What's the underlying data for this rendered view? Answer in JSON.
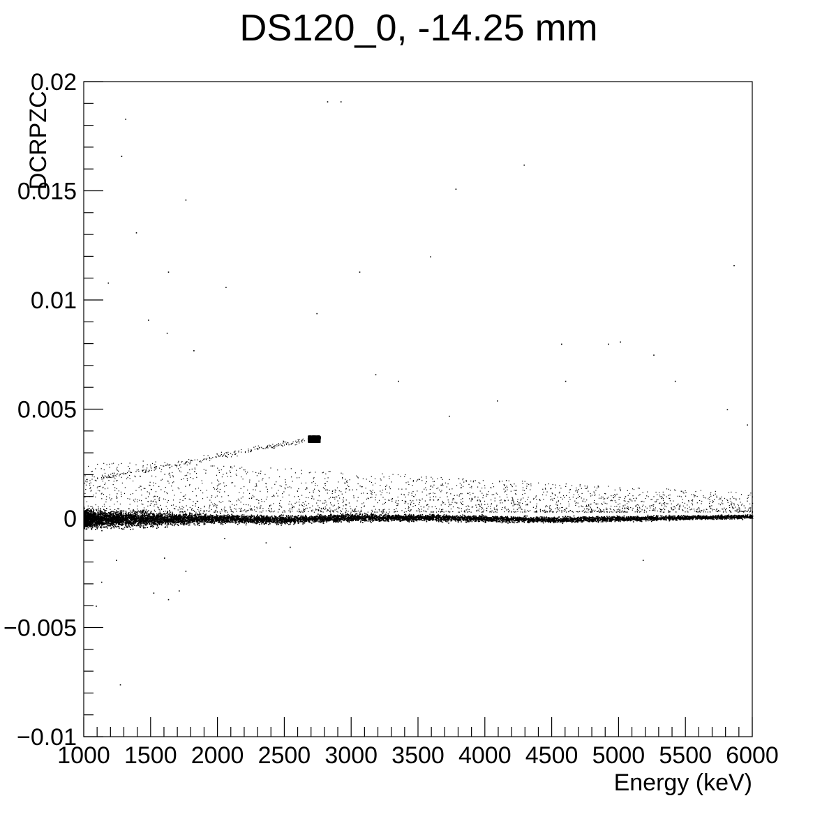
{
  "chart_data": {
    "type": "scatter",
    "title": "DS120_0, -14.25 mm",
    "xlabel": "Energy (keV)",
    "ylabel": "DCRPZC",
    "xlim": [
      1000,
      6000
    ],
    "ylim": [
      -0.01,
      0.02
    ],
    "x_ticks": [
      1000,
      1500,
      2000,
      2500,
      3000,
      3500,
      4000,
      4500,
      5000,
      5500,
      6000
    ],
    "x_tick_labels": [
      "1000",
      "1500",
      "2000",
      "2500",
      "3000",
      "3500",
      "4000",
      "4500",
      "5000",
      "5500",
      "6000"
    ],
    "y_ticks": [
      -0.01,
      -0.005,
      0,
      0.005,
      0.01,
      0.015,
      0.02
    ],
    "y_tick_labels": [
      "−0.01",
      "−0.005",
      "0",
      "0.005",
      "0.01",
      "0.015",
      "0.02"
    ],
    "grid": false,
    "legend": "none",
    "marker_color": "#000000",
    "features": {
      "main_band": {
        "description_points": [
          [
            1000,
            0.0
          ],
          [
            1500,
            -2e-05
          ],
          [
            2000,
            0.0
          ],
          [
            2500,
            -5e-05
          ],
          [
            3000,
            5e-05
          ],
          [
            3500,
            5e-05
          ],
          [
            4000,
            0.0
          ],
          [
            4500,
            -5e-05
          ],
          [
            5000,
            0.0
          ],
          [
            5500,
            5e-05
          ],
          [
            6000,
            0.0001
          ]
        ],
        "halfwidth": [
          [
            1000,
            0.0004
          ],
          [
            2000,
            0.00018
          ],
          [
            6000,
            8e-05
          ]
        ]
      },
      "cluster": {
        "x": 2720,
        "y": 0.00365,
        "dx": 45,
        "dy": 0.00015
      },
      "diagonal_streak": {
        "from": [
          1000,
          0.0017
        ],
        "to": [
          2650,
          0.0036
        ]
      },
      "scatter_above": {
        "from_y": 0.0003,
        "to_y": 0.0025
      }
    },
    "sample_outliers": [
      [
        1310,
        0.0183
      ],
      [
        1760,
        0.0146
      ],
      [
        2820,
        0.0191
      ],
      [
        2920,
        0.0191
      ],
      [
        1280,
        0.0166
      ],
      [
        1390,
        0.0131
      ],
      [
        1630,
        0.0113
      ],
      [
        2060,
        0.0106
      ],
      [
        1480,
        0.0091
      ],
      [
        3780,
        0.0151
      ],
      [
        4290,
        0.0162
      ],
      [
        5860,
        0.0116
      ],
      [
        3590,
        0.012
      ],
      [
        3060,
        0.0113
      ],
      [
        1180,
        0.0108
      ],
      [
        4920,
        0.008
      ],
      [
        5010,
        0.0081
      ],
      [
        4600,
        0.0063
      ],
      [
        5260,
        0.0075
      ],
      [
        5420,
        0.0063
      ],
      [
        3350,
        0.0063
      ],
      [
        3180,
        0.0066
      ],
      [
        1620,
        0.0085
      ],
      [
        1820,
        0.0077
      ],
      [
        2740,
        0.0094
      ],
      [
        4570,
        0.008
      ],
      [
        5810,
        0.005
      ],
      [
        5960,
        0.0043
      ],
      [
        4090,
        0.0054
      ],
      [
        3730,
        0.0047
      ],
      [
        1270,
        -0.0076
      ],
      [
        1520,
        -0.0034
      ],
      [
        1760,
        -0.0024
      ],
      [
        1600,
        -0.0018
      ],
      [
        1710,
        -0.0033
      ],
      [
        1630,
        -0.0037
      ],
      [
        2050,
        -0.0009
      ],
      [
        2360,
        -0.0011
      ],
      [
        2540,
        -0.0013
      ],
      [
        5180,
        -0.0019
      ],
      [
        1090,
        -0.004
      ],
      [
        1130,
        -0.0029
      ],
      [
        1240,
        -0.0019
      ]
    ]
  }
}
